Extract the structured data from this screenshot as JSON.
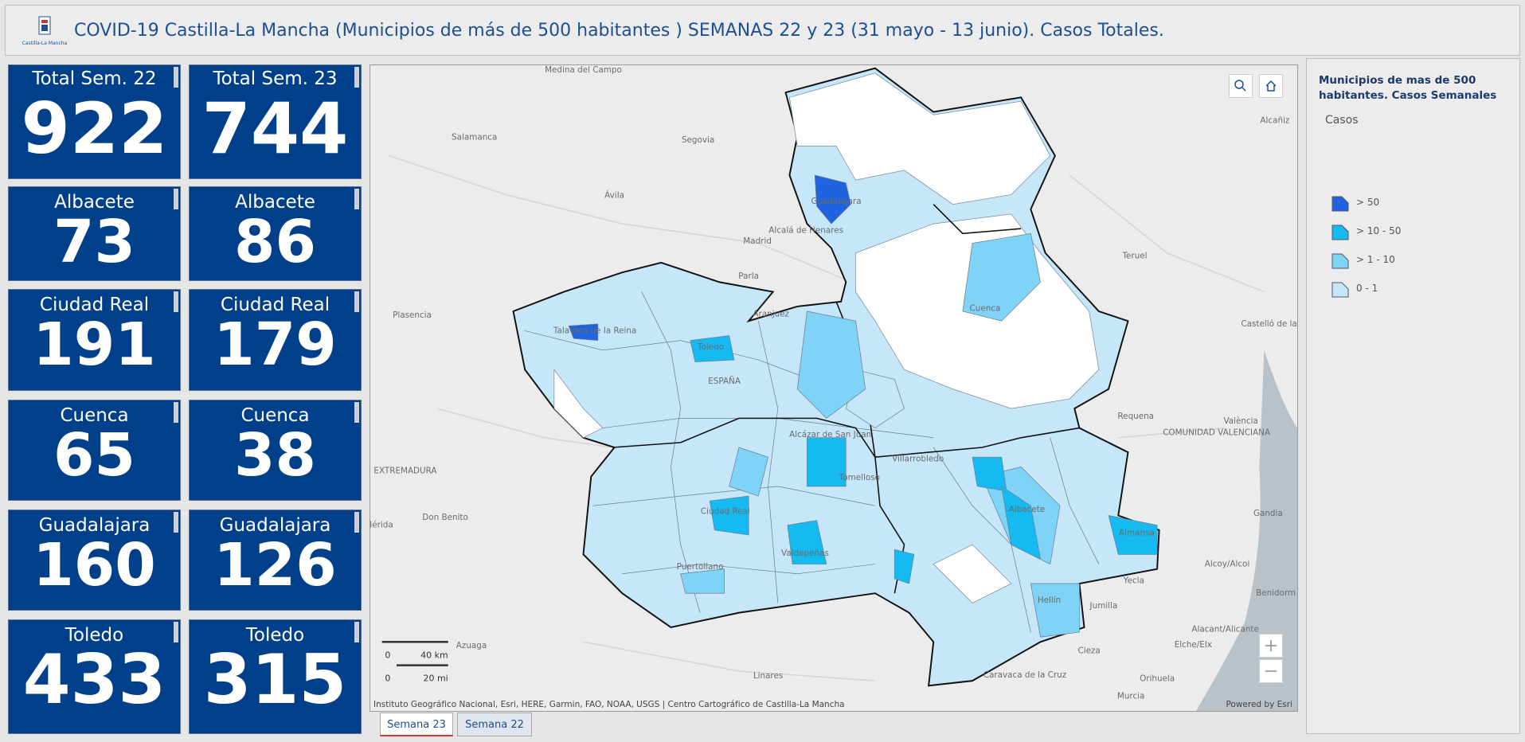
{
  "header": {
    "title": "COVID-19 Castilla-La Mancha (Municipios de más de 500 habitantes ) SEMANAS 22 y 23 (31 mayo - 13 junio). Casos Totales.",
    "logo_text": "Castilla-La Mancha"
  },
  "indicators": [
    [
      {
        "label": "Total Sem. 22",
        "value": 922
      },
      {
        "label": "Albacete",
        "value": 73
      },
      {
        "label": "Ciudad Real",
        "value": 191
      },
      {
        "label": "Cuenca",
        "value": 65
      },
      {
        "label": "Guadalajara",
        "value": 160
      },
      {
        "label": "Toledo",
        "value": 433
      }
    ],
    [
      {
        "label": "Total Sem. 23",
        "value": 744
      },
      {
        "label": "Albacete",
        "value": 86
      },
      {
        "label": "Ciudad Real",
        "value": 179
      },
      {
        "label": "Cuenca",
        "value": 38
      },
      {
        "label": "Guadalajara",
        "value": 126
      },
      {
        "label": "Toledo",
        "value": 315
      }
    ]
  ],
  "map": {
    "places": [
      "Medina del Campo",
      "Salamanca",
      "Segovia",
      "Ávila",
      "Madrid",
      "Alcalá de Henares",
      "Guadalajara",
      "Teruel",
      "Alcañiz",
      "Parla",
      "Aranjuez",
      "Plasencia",
      "Talavera de la Reina",
      "Toledo",
      "Cuenca",
      "ESPAÑA",
      "Requena",
      "València",
      "COMUNIDAD VALENCIANA",
      "EXTREMADURA",
      "Alcázar de San Juan",
      "Tomelloso",
      "Villarrobledo",
      "Don Benito",
      "Ciudad Real",
      "Albacete",
      "Gandia",
      "Almansa",
      "Valdepeñas",
      "Puertollano",
      "Alcoy/Alcoi",
      "Yecla",
      "Benidorm",
      "Hellín",
      "Jumilla",
      "Alacant/Alicante",
      "Azuaga",
      "Elche/Elx",
      "Cieza",
      "Linares",
      "Caravaca de la Cruz",
      "Orihuela",
      "Murcia",
      "Castelló de la Plana",
      "Mérida"
    ],
    "attribution": "Instituto Geográfico Nacional, Esri, HERE, Garmin, FAO, NOAA, USGS | Centro Cartográfico de Castilla-La Mancha",
    "powered_by": "Powered by Esri",
    "scale": {
      "km_zero": 0,
      "km": "40 km",
      "mi_zero": 0,
      "mi": "20 mi"
    }
  },
  "legend": {
    "title": "Municipios de mas de 500 habitantes. Casos Semanales",
    "field": "Casos",
    "classes": [
      {
        "label": "> 50",
        "color": "#1f63e0"
      },
      {
        "label": "> 10 - 50",
        "color": "#14baf0"
      },
      {
        "label": "> 1 - 10",
        "color": "#7fd3f6"
      },
      {
        "label": "0 - 1",
        "color": "#c6e6fa"
      }
    ]
  },
  "tabs": [
    "Semana 23",
    "Semana 22"
  ]
}
